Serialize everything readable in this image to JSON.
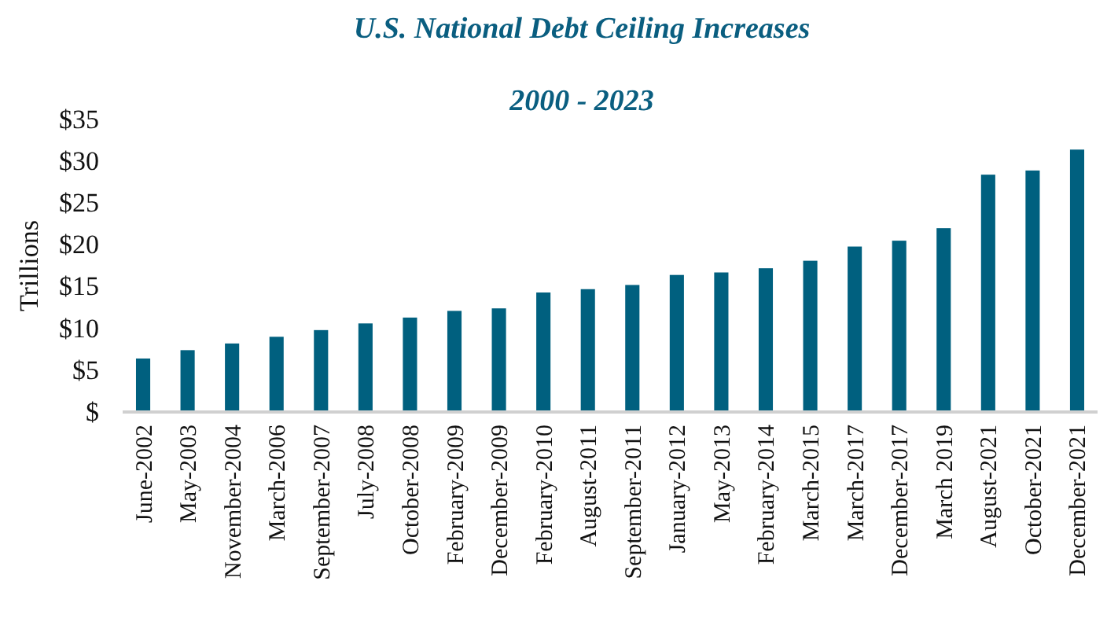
{
  "chart_data": {
    "type": "bar",
    "title": "U.S. National Debt Ceiling Increases",
    "subtitle": "2000 - 2023",
    "ylabel": "Trillions",
    "categories": [
      "June-2002",
      "May-2003",
      "November-2004",
      "March-2006",
      "September-2007",
      "July-2008",
      "October-2008",
      "February-2009",
      "December-2009",
      "February-2010",
      "August-2011",
      "September-2011",
      "January-2012",
      "May-2013",
      "February-2014",
      "March-2015",
      "March-2017",
      "December-2017",
      "March 2019",
      "August-2021",
      "October-2021",
      "December-2021"
    ],
    "values": [
      6.4,
      7.4,
      8.2,
      9.0,
      9.8,
      10.6,
      11.3,
      12.1,
      12.4,
      14.3,
      14.7,
      15.2,
      16.4,
      16.7,
      17.2,
      18.1,
      19.8,
      20.5,
      22.0,
      28.4,
      28.9,
      31.4
    ],
    "color": "#00607f",
    "ylim": [
      0,
      35
    ],
    "yticks": [
      {
        "value": 0,
        "label": "$"
      },
      {
        "value": 5,
        "label": "$5"
      },
      {
        "value": 10,
        "label": "$10"
      },
      {
        "value": 15,
        "label": "$15"
      },
      {
        "value": 20,
        "label": "$20"
      },
      {
        "value": 25,
        "label": "$25"
      },
      {
        "value": 30,
        "label": "$30"
      },
      {
        "value": 35,
        "label": "$35"
      }
    ],
    "grid": false
  }
}
